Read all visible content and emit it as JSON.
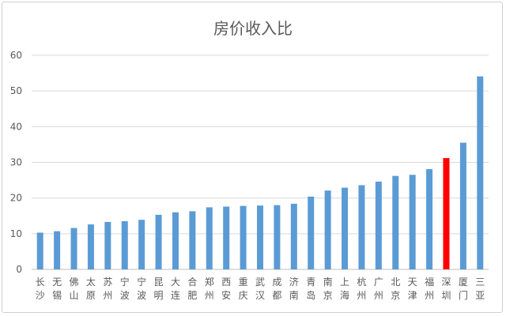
{
  "chart_data": {
    "type": "bar",
    "title": "房价收入比",
    "xlabel": "",
    "ylabel": "",
    "ylim": [
      0,
      60
    ],
    "yticks": [
      0,
      10,
      20,
      30,
      40,
      50,
      60
    ],
    "grid": true,
    "legend": "none",
    "bar_color": "#5b9bd5",
    "highlight_color": "#ff0000",
    "highlight_category": "深圳",
    "categories": [
      "长沙",
      "无锡",
      "佛山",
      "太原",
      "苏州",
      "宁波",
      "宁波",
      "昆明",
      "大连",
      "合肥",
      "郑州",
      "西安",
      "重庆",
      "武汉",
      "成都",
      "济南",
      "青岛",
      "南京",
      "上海",
      "杭州",
      "广州",
      "北京",
      "天津",
      "福州",
      "深圳",
      "厦门",
      "三亚"
    ],
    "values": [
      10.3,
      10.7,
      11.6,
      12.6,
      13.3,
      13.5,
      13.9,
      15.3,
      16.0,
      16.3,
      17.4,
      17.6,
      17.8,
      17.9,
      18.0,
      18.4,
      20.4,
      22.1,
      22.9,
      23.6,
      24.6,
      26.2,
      26.5,
      28.1,
      31.2,
      35.5,
      54.1
    ]
  }
}
